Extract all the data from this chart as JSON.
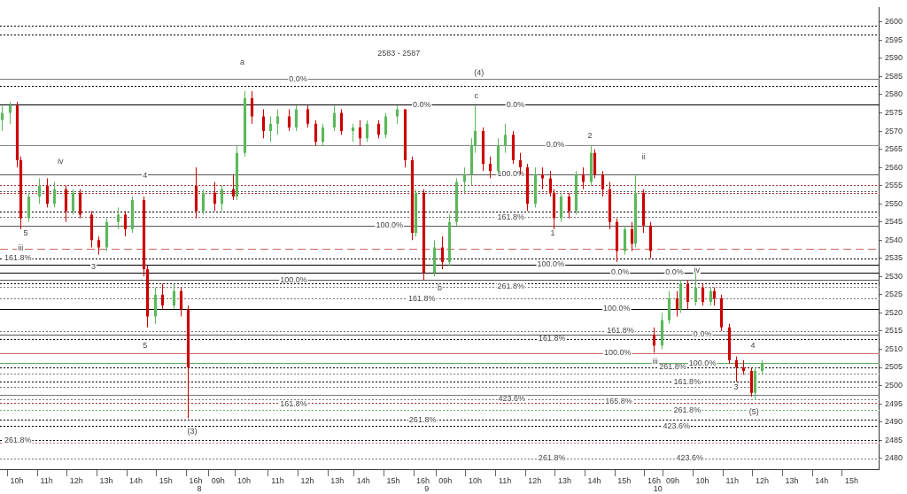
{
  "chart_data": {
    "type": "candlestick",
    "categories": [
      null,
      null,
      null,
      null,
      "10h",
      null,
      null,
      null,
      null,
      null,
      null,
      null,
      "11h",
      null,
      null,
      null,
      null,
      null,
      null,
      null,
      "12h",
      null,
      null,
      null,
      null,
      null,
      null,
      null,
      "13h",
      null,
      null,
      null,
      null,
      null,
      null,
      null,
      "14h",
      null,
      null,
      null,
      null,
      null,
      null,
      null,
      "15h",
      null,
      null,
      null,
      null,
      null,
      null,
      null,
      "16h",
      "8",
      null,
      null,
      null,
      null,
      "09h",
      null,
      null,
      null,
      null,
      null,
      null,
      "10h",
      null,
      null,
      null,
      null,
      null,
      null,
      null,
      null,
      "11h",
      null,
      null,
      null,
      null,
      null,
      null,
      null,
      "12h",
      null,
      null,
      null,
      null,
      null,
      null,
      null,
      "13h",
      null,
      null,
      null,
      null,
      null,
      null,
      "14h",
      null,
      null,
      null,
      null,
      null,
      null,
      null,
      "15h",
      null,
      null,
      null,
      null,
      null,
      null,
      null,
      "16h",
      "9",
      null,
      null,
      null,
      null,
      "09h",
      null,
      null,
      null,
      null,
      null,
      null,
      null,
      "10h",
      null,
      null,
      null,
      null,
      null,
      null,
      null,
      "11h",
      null,
      null,
      null,
      null,
      null,
      null,
      null,
      "12h",
      null,
      null,
      null,
      null,
      null,
      null,
      null,
      "13h",
      null,
      null,
      null,
      null,
      null,
      null,
      null,
      "14h",
      null,
      null,
      null,
      null,
      null,
      null,
      null,
      "15h",
      null,
      null,
      null,
      null,
      null,
      null,
      null,
      "16h",
      "10",
      null,
      null,
      null,
      "09h",
      null,
      null,
      null,
      null,
      null,
      null,
      null,
      "10h",
      null,
      null,
      null,
      null,
      null,
      null,
      null,
      "11h",
      null,
      null,
      null,
      null,
      null,
      null,
      null,
      "12h",
      null,
      null,
      null,
      null,
      null,
      null,
      null,
      "13h",
      null,
      null,
      null,
      null,
      null,
      null,
      null,
      "14h",
      null,
      null,
      null,
      null,
      null,
      null,
      null,
      "15h",
      null,
      null,
      null,
      null,
      null,
      null,
      null
    ],
    "ohlc": [
      [
        2573,
        2577,
        2570,
        2575
      ],
      null,
      [
        2575,
        2578,
        2572,
        2577
      ],
      null,
      [
        2577,
        2578,
        2560,
        2562
      ],
      [
        2562,
        2563,
        2543,
        2546
      ],
      null,
      [
        2546,
        2553,
        2545,
        2552
      ],
      null,
      null,
      [
        2552,
        2557,
        2550,
        2555
      ],
      null,
      [
        2555,
        2557,
        2549,
        2550
      ],
      null,
      [
        2550,
        2556,
        2549,
        2554
      ],
      null,
      null,
      [
        2554,
        2555,
        2545,
        2548
      ],
      null,
      [
        2548,
        2554,
        2547,
        2553
      ],
      null,
      [
        2553,
        2554,
        2546,
        2547
      ],
      null,
      null,
      [
        2547,
        2548,
        2538,
        2540
      ],
      null,
      [
        2540,
        2541,
        2536,
        2538
      ],
      null,
      [
        2538,
        2546,
        2537,
        2545
      ],
      null,
      null,
      [
        2545,
        2549,
        2543,
        2547
      ],
      null,
      [
        2547,
        2548,
        2541,
        2543
      ],
      null,
      [
        2543,
        2552,
        2542,
        2551
      ],
      null,
      null,
      [
        2551,
        2552,
        2530,
        2532
      ],
      [
        2532,
        2533,
        2516,
        2519
      ],
      null,
      [
        2519,
        2527,
        2517,
        2525
      ],
      null,
      [
        2525,
        2528,
        2521,
        2522
      ],
      null,
      null,
      [
        2522,
        2528,
        2521,
        2526
      ],
      null,
      [
        2526,
        2527,
        2519,
        2521
      ],
      null,
      [
        2521,
        2522,
        2491,
        2505
      ],
      null,
      [
        2555,
        2560,
        2546,
        2548
      ],
      null,
      [
        2548,
        2554,
        2547,
        2553
      ],
      null,
      null,
      [
        2553,
        2556,
        2548,
        2550
      ],
      null,
      [
        2550,
        2555,
        2548,
        2554
      ],
      null,
      null,
      [
        2554,
        2558,
        2551,
        2552
      ],
      [
        2552,
        2566,
        2551,
        2564
      ],
      null,
      [
        2564,
        2581,
        2563,
        2579
      ],
      null,
      [
        2579,
        2581,
        2572,
        2574
      ],
      null,
      null,
      [
        2574,
        2576,
        2568,
        2570
      ],
      null,
      [
        2570,
        2574,
        2567,
        2572
      ],
      null,
      [
        2572,
        2576,
        2569,
        2574
      ],
      null,
      null,
      [
        2574,
        2576,
        2570,
        2571
      ],
      null,
      [
        2571,
        2577,
        2570,
        2576
      ],
      null,
      null,
      [
        2576,
        2577,
        2571,
        2572
      ],
      null,
      [
        2572,
        2573,
        2566,
        2567
      ],
      null,
      [
        2567,
        2572,
        2566,
        2571
      ],
      null,
      null,
      [
        2571,
        2577,
        2570,
        2575
      ],
      null,
      [
        2575,
        2576,
        2569,
        2570
      ],
      null,
      null,
      [
        2570,
        2572,
        2567,
        2571
      ],
      null,
      [
        2571,
        2573,
        2566,
        2568
      ],
      null,
      [
        2568,
        2573,
        2567,
        2572
      ],
      null,
      null,
      [
        2572,
        2573,
        2568,
        2569
      ],
      null,
      [
        2569,
        2575,
        2568,
        2574
      ],
      null,
      null,
      [
        2574,
        2577,
        2572,
        2576
      ],
      null,
      [
        2576,
        2576,
        2560,
        2562
      ],
      null,
      [
        2562,
        2563,
        2540,
        2542
      ],
      [
        2542,
        2554,
        2541,
        2553
      ],
      null,
      [
        2553,
        2554,
        2529,
        2531
      ],
      null,
      null,
      [
        2531,
        2540,
        2530,
        2538
      ],
      null,
      [
        2538,
        2541,
        2532,
        2534
      ],
      null,
      [
        2534,
        2547,
        2533,
        2545
      ],
      null,
      [
        2545,
        2557,
        2544,
        2556
      ],
      null,
      [
        2556,
        2560,
        2553,
        2558
      ],
      null,
      [
        2558,
        2568,
        2555,
        2566
      ],
      [
        2566,
        2577,
        2564,
        2570
      ],
      null,
      [
        2570,
        2571,
        2559,
        2561
      ],
      null,
      [
        2561,
        2563,
        2557,
        2559
      ],
      null,
      [
        2559,
        2568,
        2558,
        2566
      ],
      null,
      [
        2566,
        2572,
        2564,
        2569
      ],
      null,
      [
        2569,
        2570,
        2561,
        2562
      ],
      null,
      [
        2562,
        2564,
        2558,
        2560
      ],
      null,
      [
        2560,
        2561,
        2548,
        2550
      ],
      null,
      [
        2550,
        2560,
        2549,
        2558
      ],
      null,
      [
        2558,
        2560,
        2554,
        2557
      ],
      null,
      [
        2557,
        2559,
        2552,
        2553
      ],
      [
        2553,
        2554,
        2543,
        2546
      ],
      null,
      [
        2546,
        2553,
        2545,
        2552
      ],
      null,
      [
        2552,
        2553,
        2546,
        2548
      ],
      null,
      [
        2548,
        2559,
        2547,
        2558
      ],
      null,
      [
        2558,
        2560,
        2554,
        2556
      ],
      null,
      [
        2556,
        2566,
        2555,
        2564
      ],
      [
        2564,
        2565,
        2557,
        2558
      ],
      null,
      [
        2558,
        2559,
        2552,
        2554
      ],
      null,
      [
        2554,
        2556,
        2543,
        2545
      ],
      null,
      [
        2545,
        2546,
        2534,
        2537
      ],
      null,
      [
        2537,
        2544,
        2536,
        2543
      ],
      null,
      [
        2543,
        2545,
        2537,
        2539
      ],
      [
        2539,
        2558,
        2538,
        2553
      ],
      null,
      [
        2553,
        2554,
        2542,
        2544
      ],
      null,
      [
        2544,
        2545,
        2535,
        2537
      ],
      [
        2514,
        2516,
        2509,
        2511
      ],
      null,
      [
        2511,
        2520,
        2510,
        2518
      ],
      null,
      [
        2518,
        2526,
        2517,
        2524
      ],
      null,
      [
        2524,
        2526,
        2519,
        2521
      ],
      [
        2521,
        2529,
        2520,
        2528
      ],
      null,
      [
        2528,
        2529,
        2521,
        2523
      ],
      null,
      [
        2523,
        2531,
        2522,
        2527
      ],
      null,
      [
        2527,
        2528,
        2522,
        2523
      ],
      null,
      [
        2523,
        2527,
        2522,
        2526
      ],
      [
        2526,
        2527,
        2522,
        2524
      ],
      null,
      [
        2524,
        2525,
        2515,
        2516
      ],
      null,
      [
        2516,
        2517,
        2506,
        2507
      ],
      null,
      [
        2507,
        2508,
        2501,
        2505
      ],
      null,
      [
        2505,
        2507,
        2503,
        2504
      ],
      null,
      [
        2504,
        2505,
        2497,
        2498
      ],
      [
        2498,
        2505,
        2496,
        2504
      ],
      null,
      [
        2504,
        2507,
        2503,
        2506
      ],
      null,
      null,
      null,
      null,
      null,
      null,
      null,
      null,
      null,
      null,
      null,
      null,
      null,
      null,
      null,
      null,
      null,
      null,
      null,
      null,
      null,
      null,
      null,
      null,
      null,
      null,
      null,
      null,
      null,
      null,
      null
    ],
    "colors": [
      "#5cb85c",
      null,
      "#5cb85c",
      null,
      "#cc0000",
      "#cc0000",
      null,
      "#5cb85c",
      null,
      null,
      "#5cb85c",
      null,
      "#cc0000",
      null,
      "#5cb85c",
      null,
      null,
      "#cc0000",
      null,
      "#5cb85c",
      null,
      "#cc0000",
      null,
      null,
      "#cc0000",
      null,
      "#cc0000",
      null,
      "#5cb85c",
      null,
      null,
      "#5cb85c",
      null,
      "#cc0000",
      null,
      "#5cb85c",
      null,
      null,
      "#cc0000",
      "#cc0000",
      null,
      "#5cb85c",
      null,
      "#cc0000",
      null,
      null,
      "#5cb85c",
      null,
      "#cc0000",
      null,
      "#cc0000",
      null,
      "#cc0000",
      null,
      "#5cb85c",
      null,
      null,
      "#cc0000",
      null,
      "#5cb85c",
      null,
      null,
      "#cc0000",
      "#5cb85c",
      null,
      "#5cb85c",
      null,
      "#cc0000",
      null,
      null,
      "#cc0000",
      null,
      "#5cb85c",
      null,
      "#5cb85c",
      null,
      null,
      "#cc0000",
      null,
      "#5cb85c",
      null,
      null,
      "#cc0000",
      null,
      "#cc0000",
      null,
      "#5cb85c",
      null,
      null,
      "#5cb85c",
      null,
      "#cc0000",
      null,
      null,
      "#5cb85c",
      null,
      "#cc0000",
      null,
      "#5cb85c",
      null,
      null,
      "#cc0000",
      null,
      "#5cb85c",
      null,
      null,
      "#5cb85c",
      null,
      "#cc0000",
      null,
      "#cc0000",
      "#5cb85c",
      null,
      "#cc0000",
      null,
      null,
      "#5cb85c",
      null,
      "#cc0000",
      null,
      "#5cb85c",
      null,
      "#5cb85c",
      null,
      "#5cb85c",
      null,
      "#5cb85c",
      "#5cb85c",
      null,
      "#cc0000",
      null,
      "#cc0000",
      null,
      "#5cb85c",
      null,
      "#5cb85c",
      null,
      "#cc0000",
      null,
      "#cc0000",
      null,
      "#cc0000",
      null,
      "#5cb85c",
      null,
      "#cc0000",
      null,
      "#cc0000",
      "#cc0000",
      null,
      "#5cb85c",
      null,
      "#cc0000",
      null,
      "#5cb85c",
      null,
      "#cc0000",
      null,
      "#5cb85c",
      "#cc0000",
      null,
      "#cc0000",
      null,
      "#cc0000",
      null,
      "#cc0000",
      null,
      "#5cb85c",
      null,
      "#cc0000",
      "#5cb85c",
      null,
      "#cc0000",
      null,
      "#cc0000",
      "#cc0000",
      null,
      "#5cb85c",
      null,
      "#5cb85c",
      null,
      "#cc0000",
      "#5cb85c",
      null,
      "#cc0000",
      null,
      "#5cb85c",
      null,
      "#cc0000",
      null,
      "#5cb85c",
      "#cc0000",
      null,
      "#cc0000",
      null,
      "#cc0000",
      null,
      "#cc0000",
      null,
      "#cc0000",
      null,
      "#cc0000",
      "#5cb85c",
      null,
      "#5cb85c",
      null,
      null,
      null,
      null,
      null,
      null,
      null,
      null,
      null,
      null,
      null,
      null,
      null,
      null,
      null,
      null,
      null,
      null,
      null,
      null,
      null,
      null,
      null,
      null,
      null,
      null,
      null,
      null,
      null,
      null,
      null
    ],
    "ylim": [
      2477,
      2604
    ],
    "yticks": [
      2480,
      2485,
      2490,
      2495,
      2500,
      2505,
      2510,
      2515,
      2520,
      2525,
      2530,
      2535,
      2540,
      2545,
      2550,
      2555,
      2560,
      2565,
      2570,
      2575,
      2580,
      2585,
      2590,
      2595,
      2600
    ],
    "grid": false,
    "ref_lines": [
      {
        "axis": "y",
        "value": 2599.1,
        "color": "#000000",
        "line_style": "dotted"
      },
      {
        "axis": "y",
        "value": 2596.6,
        "color": "#000000",
        "line_style": "dotted"
      },
      {
        "axis": "y",
        "value": 2584.3,
        "color": "#777777",
        "line_style": "solid"
      },
      {
        "axis": "y",
        "value": 2582.5,
        "color": "#000000",
        "line_style": "dotted"
      },
      {
        "axis": "y",
        "value": 2577.2,
        "color": "#000000",
        "line_style": "solid"
      },
      {
        "axis": "y",
        "value": 2566.2,
        "color": "#888888",
        "line_style": "solid"
      },
      {
        "axis": "y",
        "value": 2558.1,
        "color": "#555555",
        "line_style": "solid"
      },
      {
        "axis": "y",
        "value": 2555.1,
        "color": "#aa3333",
        "line_style": "dotted"
      },
      {
        "axis": "y",
        "value": 2553.5,
        "color": "#555555",
        "line_style": "dotted"
      },
      {
        "axis": "y",
        "value": 2552.9,
        "color": "#aa3333",
        "line_style": "dotted"
      },
      {
        "axis": "y",
        "value": 2547.9,
        "color": "#000000",
        "line_style": "dotted"
      },
      {
        "axis": "y",
        "value": 2546.3,
        "color": "#777777",
        "line_style": "dotted"
      },
      {
        "axis": "y",
        "value": 2544.0,
        "color": "#555555",
        "line_style": "solid"
      },
      {
        "axis": "y",
        "value": 2537.6,
        "color": "#cc6666",
        "line_style": "dashed"
      },
      {
        "axis": "y",
        "value": 2535.0,
        "color": "#000000",
        "line_style": "dotted"
      },
      {
        "axis": "y",
        "value": 2533.3,
        "color": "#000000",
        "line_style": "solid"
      },
      {
        "axis": "y",
        "value": 2531.1,
        "color": "#000000",
        "line_style": "solid"
      },
      {
        "axis": "y",
        "value": 2529.1,
        "color": "#555555",
        "line_style": "solid"
      },
      {
        "axis": "y",
        "value": 2528.1,
        "color": "#000000",
        "line_style": "dotted"
      },
      {
        "axis": "y",
        "value": 2527.2,
        "color": "#777777",
        "line_style": "dotted"
      },
      {
        "axis": "y",
        "value": 2523.9,
        "color": "#777777",
        "line_style": "dotted"
      },
      {
        "axis": "y",
        "value": 2521.1,
        "color": "#000000",
        "line_style": "solid"
      },
      {
        "axis": "y",
        "value": 2515.0,
        "color": "#777777",
        "line_style": "dotted"
      },
      {
        "axis": "y",
        "value": 2514.1,
        "color": "#555555",
        "line_style": "solid"
      },
      {
        "axis": "y",
        "value": 2512.8,
        "color": "#000000",
        "line_style": "dotted"
      },
      {
        "axis": "y",
        "value": 2509.0,
        "color": "#cc6666",
        "line_style": "solid"
      },
      {
        "axis": "y",
        "value": 2506.2,
        "color": "#66aa66",
        "line_style": "solid"
      },
      {
        "axis": "y",
        "value": 2505.0,
        "color": "#000000",
        "line_style": "dotted"
      },
      {
        "axis": "y",
        "value": 2503.3,
        "color": "#777777",
        "line_style": "dotted"
      },
      {
        "axis": "y",
        "value": 2501.1,
        "color": "#000000",
        "line_style": "dotted"
      },
      {
        "axis": "y",
        "value": 2499.7,
        "color": "#777777",
        "line_style": "dotted"
      },
      {
        "axis": "y",
        "value": 2497.4,
        "color": "#777777",
        "line_style": "solid"
      },
      {
        "axis": "y",
        "value": 2496.3,
        "color": "#777777",
        "line_style": "dotted"
      },
      {
        "axis": "y",
        "value": 2495.2,
        "color": "#aa3333",
        "line_style": "dotted"
      },
      {
        "axis": "y",
        "value": 2493.3,
        "color": "#66aa66",
        "line_style": "dotted"
      },
      {
        "axis": "y",
        "value": 2490.6,
        "color": "#000000",
        "line_style": "dotted"
      },
      {
        "axis": "y",
        "value": 2488.9,
        "color": "#000000",
        "line_style": "dotted"
      },
      {
        "axis": "y",
        "value": 2485.0,
        "color": "#000000",
        "line_style": "dotted"
      },
      {
        "axis": "y",
        "value": 2484.2,
        "color": "#cc6699",
        "line_style": "dotted"
      },
      {
        "axis": "y",
        "value": 2479.9,
        "color": "#777777",
        "line_style": "dotted"
      }
    ],
    "annotations": [
      "2583 - 2587",
      {
        "text": "a",
        "y": 2588.9
      },
      {
        "text": "(4)",
        "y": 2586.0
      },
      {
        "text": "c",
        "y": 2579.6
      },
      {
        "text": "iv",
        "y": 2561.5
      },
      {
        "text": "4",
        "y": 2557.7
      },
      {
        "text": "5",
        "y": 2542
      },
      {
        "text": "iii",
        "y": 2537.7
      },
      {
        "text": "3",
        "y": 2532.6
      },
      {
        "text": "5",
        "y": 2510.9
      },
      {
        "text": "(3)",
        "y": 2487.3
      },
      {
        "text": "b",
        "y": 2526.7
      },
      {
        "text": "1",
        "y": 2542
      },
      {
        "text": "2",
        "y": 2568.7
      },
      {
        "text": "ii",
        "y": 2562.8
      },
      {
        "text": "iii",
        "y": 2506.7
      },
      {
        "text": "iv",
        "y": 2531.7
      },
      {
        "text": "4",
        "y": 2510.9
      },
      {
        "text": "3",
        "y": 2499.6
      },
      {
        "text": "(5)",
        "y": 2492.7
      },
      {
        "text": "0.0%",
        "y": 2584.3
      },
      {
        "text": "0.0%",
        "y": 2577.2
      },
      {
        "text": "0.0%",
        "y": 2577.2
      },
      {
        "text": "0.0%",
        "y": 2566.2
      },
      {
        "text": "100.0%",
        "y": 2558.1
      },
      {
        "text": "161.8%",
        "y": 2546.3
      },
      {
        "text": "100.0%",
        "y": 2544.0
      },
      {
        "text": "161.8%",
        "y": 2535.0
      },
      {
        "text": "100.0%",
        "y": 2533.3
      },
      {
        "text": "100.0%",
        "y": 2529.1
      },
      {
        "text": "0.0%",
        "y": 2531.1
      },
      {
        "text": "0.0%",
        "y": 2531.1
      },
      {
        "text": "261.8%",
        "y": 2527.2
      },
      {
        "text": "161.8%",
        "y": 2523.9
      },
      {
        "text": "100.0%",
        "y": 2521.1
      },
      {
        "text": "161.8%",
        "y": 2515.0
      },
      {
        "text": "0.0%",
        "y": 2514.1
      },
      {
        "text": "161.8%",
        "y": 2512.8
      },
      {
        "text": "100.0%",
        "y": 2509.0
      },
      {
        "text": "100.0%",
        "y": 2506.2
      },
      {
        "text": "261.8%",
        "y": 2505.0
      },
      {
        "text": "161.8%",
        "y": 2501.1
      },
      {
        "text": "423.6%",
        "y": 2496.3
      },
      {
        "text": "165.8%",
        "y": 2495.6
      },
      {
        "text": "161.8%",
        "y": 2495.0
      },
      {
        "text": "261.8%",
        "y": 2493.3
      },
      {
        "text": "261.8%",
        "y": 2490.6
      },
      {
        "text": "423.6%",
        "y": 2488.9
      },
      {
        "text": "261.8%",
        "y": 2484.8
      },
      {
        "text": "261.8%",
        "y": 2480.0
      },
      {
        "text": "423.6%",
        "y": 2480.0
      }
    ]
  }
}
